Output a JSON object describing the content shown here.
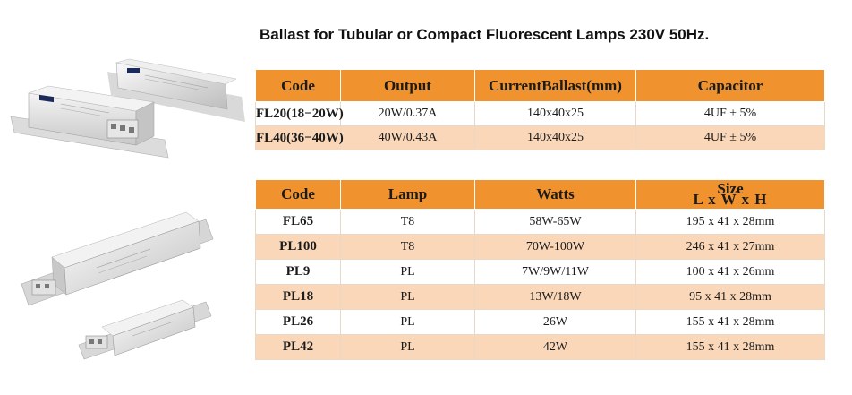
{
  "title": "Ballast for Tubular or Compact Fluorescent Lamps 230V 50Hz.",
  "images": [
    {
      "name": "ballast-photo-top",
      "label": "ballast-product-photo"
    },
    {
      "name": "ballast-photo-bottom",
      "label": "ballast-product-photo"
    }
  ],
  "table1": {
    "headers": [
      "Code",
      "Output",
      "CurrentBallast(mm)",
      "Capacitor"
    ],
    "rows": [
      [
        "FL20(18−20W)",
        "20W/0.37A",
        "140x40x25",
        "4UF ± 5%"
      ],
      [
        "FL40(36−40W)",
        "40W/0.43A",
        "140x40x25",
        "4UF ± 5%"
      ]
    ]
  },
  "table2": {
    "headers": [
      "Code",
      "Lamp",
      "Watts"
    ],
    "size_header": {
      "line1": "Size",
      "line2": "L x W x H"
    },
    "rows": [
      [
        "FL65",
        "T8",
        "58W-65W",
        "195 x 41 x 28mm"
      ],
      [
        "PL100",
        "T8",
        "70W-100W",
        "246 x 41 x 27mm"
      ],
      [
        "PL9",
        "PL",
        "7W/9W/11W",
        "100 x 41 x 26mm"
      ],
      [
        "PL18",
        "PL",
        "13W/18W",
        "95 x 41 x 28mm"
      ],
      [
        "PL26",
        "PL",
        "26W",
        "155 x 41 x 28mm"
      ],
      [
        "PL42",
        "PL",
        "42W",
        "155 x 41 x 28mm"
      ]
    ]
  },
  "colors": {
    "header_orange": "#f0922e",
    "row_peach": "#f9d7b8",
    "text": "#1b1b1b"
  }
}
